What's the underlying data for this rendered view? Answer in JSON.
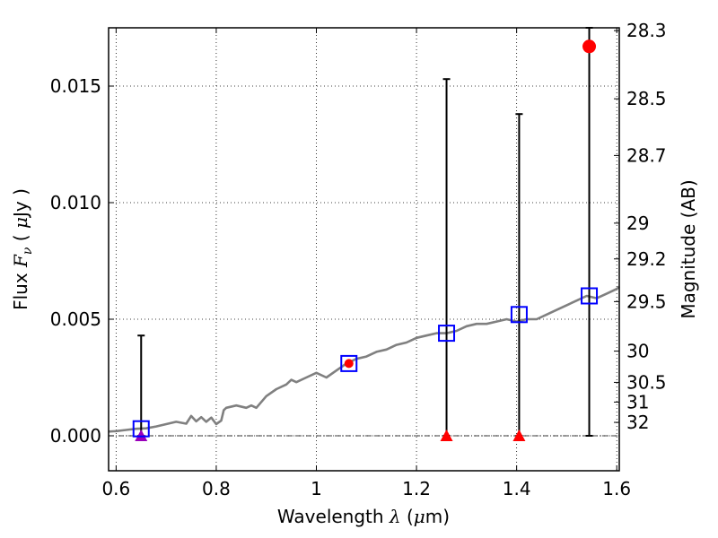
{
  "chart_data": {
    "type": "scatter",
    "title": "",
    "xlabel": {
      "prefix": "Wavelength  ",
      "symbol": "λ",
      "unit_open": " (",
      "unit_mu": "μ",
      "unit_rest": "m)"
    },
    "ylabel": {
      "prefix": "Flux  ",
      "symbol": "F",
      "subscript": "ν",
      "unit_open": "  ( ",
      "unit_mu": "μ",
      "unit_rest": "Jy )"
    },
    "ylabel_right": "Magnitude (AB)",
    "xlim": [
      0.585,
      1.605
    ],
    "ylim": [
      -0.0015,
      0.0175
    ],
    "grid": true,
    "x_ticks": [
      {
        "value": 0.6,
        "label": "0.6"
      },
      {
        "value": 0.8,
        "label": "0.8"
      },
      {
        "value": 1.0,
        "label": "1"
      },
      {
        "value": 1.2,
        "label": "1.2"
      },
      {
        "value": 1.4,
        "label": "1.4"
      },
      {
        "value": 1.6,
        "label": "1.6"
      }
    ],
    "y_ticks": [
      {
        "value": 0.0,
        "label": "0.000"
      },
      {
        "value": 0.005,
        "label": "0.005"
      },
      {
        "value": 0.01,
        "label": "0.010"
      },
      {
        "value": 0.015,
        "label": "0.015"
      }
    ],
    "right_ticks": [
      {
        "mag": 28.3,
        "label": "28.3"
      },
      {
        "mag": 28.5,
        "label": "28.5"
      },
      {
        "mag": 28.7,
        "label": "28.7"
      },
      {
        "mag": 29,
        "label": "29"
      },
      {
        "mag": 29.2,
        "label": "29.2"
      },
      {
        "mag": 29.5,
        "label": "29.5"
      },
      {
        "mag": 30,
        "label": "30"
      },
      {
        "mag": 30.5,
        "label": "30.5"
      },
      {
        "mag": 31,
        "label": "31"
      },
      {
        "mag": 32,
        "label": "32"
      }
    ],
    "model_spectrum": {
      "color": "#808080",
      "x": [
        0.585,
        0.6,
        0.62,
        0.64,
        0.66,
        0.68,
        0.7,
        0.72,
        0.74,
        0.75,
        0.76,
        0.77,
        0.78,
        0.79,
        0.8,
        0.81,
        0.815,
        0.82,
        0.84,
        0.86,
        0.87,
        0.88,
        0.9,
        0.92,
        0.94,
        0.95,
        0.96,
        0.98,
        1.0,
        1.02,
        1.04,
        1.06,
        1.08,
        1.1,
        1.12,
        1.14,
        1.16,
        1.18,
        1.2,
        1.22,
        1.24,
        1.26,
        1.28,
        1.3,
        1.32,
        1.34,
        1.36,
        1.38,
        1.4,
        1.42,
        1.44,
        1.46,
        1.48,
        1.5,
        1.52,
        1.54,
        1.56,
        1.58,
        1.6,
        1.605
      ],
      "y": [
        0.00018,
        0.0002,
        0.00025,
        0.0003,
        0.00032,
        0.0004,
        0.0005,
        0.0006,
        0.00052,
        0.00085,
        0.00062,
        0.0008,
        0.0006,
        0.00078,
        0.0005,
        0.00065,
        0.0011,
        0.0012,
        0.0013,
        0.0012,
        0.0013,
        0.0012,
        0.0017,
        0.002,
        0.0022,
        0.0024,
        0.0023,
        0.0025,
        0.0027,
        0.0025,
        0.0028,
        0.0031,
        0.0033,
        0.0034,
        0.0036,
        0.0037,
        0.0039,
        0.004,
        0.0042,
        0.0043,
        0.0044,
        0.0044,
        0.0045,
        0.0047,
        0.0048,
        0.0048,
        0.0049,
        0.005,
        0.0049,
        0.005,
        0.005,
        0.0052,
        0.0054,
        0.0056,
        0.0058,
        0.006,
        0.0059,
        0.0061,
        0.0063,
        0.0064
      ]
    },
    "model_photometry": {
      "color": "#0000ff",
      "x": [
        0.65,
        1.065,
        1.26,
        1.405,
        1.545
      ],
      "y": [
        0.0003,
        0.0031,
        0.0044,
        0.0052,
        0.006
      ]
    },
    "error_bars": {
      "color": "#000000",
      "items": [
        {
          "x": 0.65,
          "low": 0.0,
          "high": 0.0043
        },
        {
          "x": 1.26,
          "low": 0.0,
          "high": 0.0153
        },
        {
          "x": 1.405,
          "low": 0.0,
          "high": 0.0138
        },
        {
          "x": 1.545,
          "low": 0.0,
          "high": 0.0175
        }
      ]
    },
    "upper_limits": {
      "color": "#ff0000",
      "x": [
        1.26,
        1.405
      ],
      "y": [
        0.0,
        0.0
      ]
    },
    "purple_marker": {
      "color": "#9900bb",
      "x": 0.65,
      "y": 0.0
    },
    "detection": {
      "color": "#ff0000",
      "x": 1.545,
      "y": 0.0167
    },
    "small_marker": {
      "color": "#ff0000",
      "x": 1.065,
      "y": 0.0031
    }
  }
}
